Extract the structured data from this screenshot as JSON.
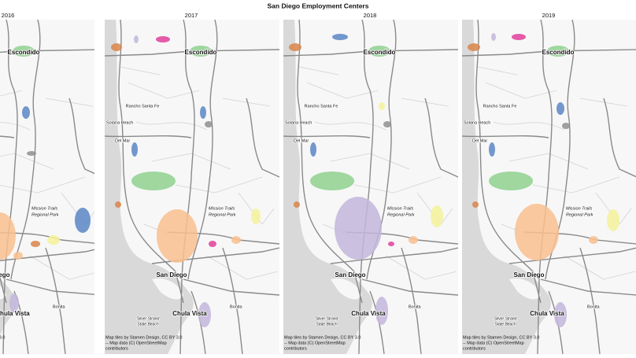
{
  "title": "San Diego Employment Centers",
  "panels": [
    {
      "year": "2016"
    },
    {
      "year": "2017"
    },
    {
      "year": "2018"
    },
    {
      "year": "2019"
    }
  ],
  "places": [
    {
      "name": "Escondido"
    },
    {
      "name": "Rancho Santa Fe"
    },
    {
      "name": "Solana Beach"
    },
    {
      "name": "Del Mar"
    },
    {
      "name": "Mission Trails"
    },
    {
      "name": "Regional Park"
    },
    {
      "name": "San Diego"
    },
    {
      "name": "Bonita"
    },
    {
      "name": "Chula Vista"
    },
    {
      "name": "Silver Strand"
    },
    {
      "name": "State Beach"
    }
  ],
  "attribution": [
    "Map tiles by Stamen Design, CC BY 3.0",
    "-- Map data (C) OpenStreetMap",
    "contributors"
  ]
}
